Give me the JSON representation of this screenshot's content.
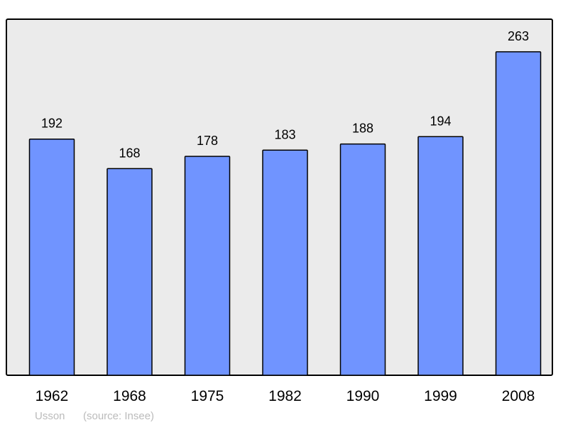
{
  "chart_data": {
    "type": "bar",
    "categories": [
      "1962",
      "1968",
      "1975",
      "1982",
      "1990",
      "1999",
      "2008"
    ],
    "values": [
      192,
      168,
      178,
      183,
      188,
      194,
      263
    ],
    "ylim": [
      0,
      289.5
    ],
    "grid": false,
    "bar_color": "#7094ff",
    "background_color": "#ebebeb",
    "caption_name": "Usson",
    "caption_source": "(source: Insee)"
  }
}
